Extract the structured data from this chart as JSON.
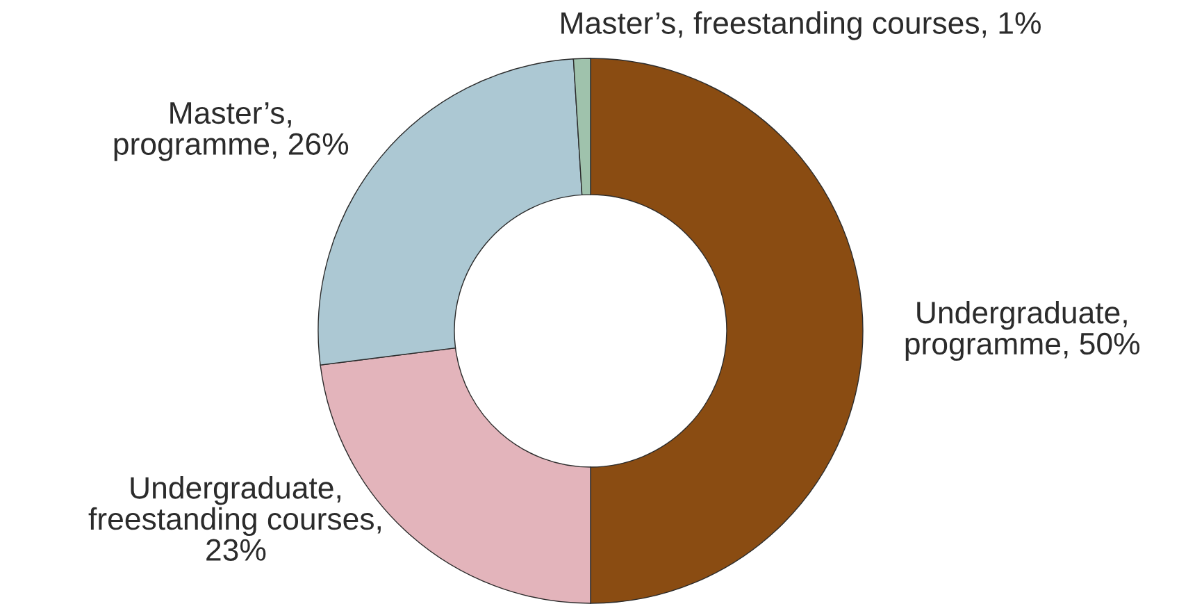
{
  "chart_data": {
    "type": "donut",
    "categories": [
      "Undergraduate,\nprogramme, 50%",
      "Undergraduate,\nfreestanding courses,\n23%",
      "Master’s,\nprogramme, 26%",
      "Master’s, freestanding courses, 1%"
    ],
    "values": [
      50,
      23,
      26,
      1
    ],
    "colors": [
      "#8a4c12",
      "#e3b4bb",
      "#acc8d3",
      "#9fc2ac"
    ]
  }
}
